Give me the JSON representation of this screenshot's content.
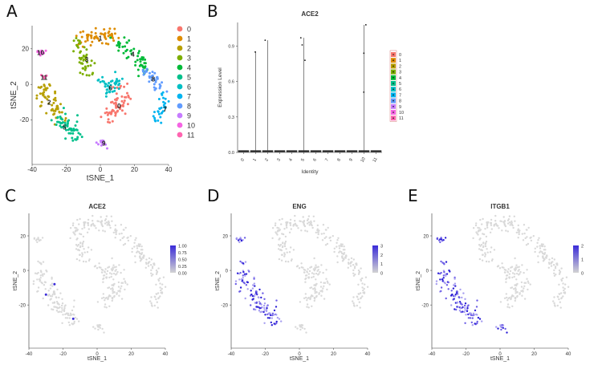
{
  "panels": {
    "A": {
      "letter": "A"
    },
    "B": {
      "letter": "B"
    },
    "C": {
      "letter": "C"
    },
    "D": {
      "letter": "D"
    },
    "E": {
      "letter": "E"
    }
  },
  "palette": [
    "#F8766D",
    "#DE8C00",
    "#B79F00",
    "#7CAE00",
    "#00BA38",
    "#00C08B",
    "#00BFC4",
    "#00B4F0",
    "#619CFF",
    "#C77CFF",
    "#F564E3",
    "#FF64B0"
  ],
  "chart_data": [
    {
      "panel": "A",
      "type": "scatter",
      "title": "",
      "xlabel": "tSNE_1",
      "ylabel": "tSNE_2",
      "xlim": [
        -40,
        40
      ],
      "ylim": [
        -45,
        33
      ],
      "xticks": [
        -40,
        -20,
        0,
        20,
        40
      ],
      "yticks": [
        -20,
        0,
        20
      ],
      "legend": {
        "placement": "right",
        "entries": [
          "0",
          "1",
          "2",
          "3",
          "4",
          "5",
          "6",
          "7",
          "8",
          "9",
          "10",
          "11"
        ]
      },
      "cluster_labels": [
        {
          "text": "0",
          "x": 11,
          "y": -12
        },
        {
          "text": "1",
          "x": 0,
          "y": 26
        },
        {
          "text": "2",
          "x": -30,
          "y": -10
        },
        {
          "text": "3",
          "x": -8,
          "y": 14
        },
        {
          "text": "4",
          "x": 19,
          "y": 17
        },
        {
          "text": "5",
          "x": -21,
          "y": -24
        },
        {
          "text": "6",
          "x": 6,
          "y": -2
        },
        {
          "text": "7",
          "x": 38,
          "y": -14
        },
        {
          "text": "8",
          "x": 31,
          "y": 3
        },
        {
          "text": "9",
          "x": 2,
          "y": -33
        },
        {
          "text": "10",
          "x": -35,
          "y": 18
        },
        {
          "text": "11",
          "x": -33,
          "y": 4
        }
      ]
    },
    {
      "panel": "B",
      "type": "violin",
      "title": "ACE2",
      "xlabel": "Identity",
      "ylabel": "Expression Level",
      "categories": [
        "0",
        "1",
        "2",
        "3",
        "4",
        "5",
        "6",
        "7",
        "8",
        "9",
        "10",
        "11"
      ],
      "ylim": [
        0,
        1.1
      ],
      "yticks": [
        "0.0",
        "0.3",
        "0.6",
        "0.9"
      ],
      "nonzero_points": [
        {
          "cluster": "1",
          "y": 0.85
        },
        {
          "cluster": "2",
          "y": 0.95
        },
        {
          "cluster": "5",
          "y": 0.97
        },
        {
          "cluster": "5",
          "y": 0.91
        },
        {
          "cluster": "5",
          "y": 0.78
        },
        {
          "cluster": "10",
          "y": 1.08
        },
        {
          "cluster": "10",
          "y": 0.84
        },
        {
          "cluster": "10",
          "y": 0.51
        }
      ],
      "legend": {
        "placement": "right",
        "entries": [
          "0",
          "1",
          "2",
          "3",
          "4",
          "5",
          "6",
          "7",
          "8",
          "9",
          "10",
          "11"
        ]
      }
    },
    {
      "panel": "C",
      "type": "scatter",
      "title": "ACE2",
      "xlabel": "tSNE_1",
      "ylabel": "tSNE_2",
      "xlim": [
        -40,
        40
      ],
      "ylim": [
        -45,
        33
      ],
      "xticks": [
        -40,
        -20,
        0,
        20,
        40
      ],
      "yticks": [
        -20,
        0,
        20
      ],
      "colorbar": {
        "ticks": [
          "1.00",
          "0.75",
          "0.50",
          "0.25",
          "0.00"
        ],
        "low": "#d3d3d3",
        "high": "#3a2bd8"
      },
      "highlighted": {
        "clusters": [],
        "points": [
          {
            "x": -25,
            "y": -8
          },
          {
            "x": -30,
            "y": -14
          },
          {
            "x": -14,
            "y": -28
          }
        ]
      }
    },
    {
      "panel": "D",
      "type": "scatter",
      "title": "ENG",
      "xlabel": "tSNE_1",
      "ylabel": "tSNE_2",
      "xlim": [
        -40,
        40
      ],
      "ylim": [
        -45,
        33
      ],
      "xticks": [
        -40,
        -20,
        0,
        20,
        40
      ],
      "yticks": [
        -20,
        0,
        20
      ],
      "colorbar": {
        "ticks": [
          "3",
          "2",
          "1",
          "0"
        ],
        "low": "#d3d3d3",
        "high": "#3a2bd8"
      },
      "highlighted": {
        "clusters": [
          "2",
          "5",
          "10",
          "11"
        ],
        "points": []
      }
    },
    {
      "panel": "E",
      "type": "scatter",
      "title": "ITGB1",
      "xlabel": "tSNE_1",
      "ylabel": "tSNE_2",
      "xlim": [
        -40,
        40
      ],
      "ylim": [
        -45,
        33
      ],
      "xticks": [
        -40,
        -20,
        0,
        20,
        40
      ],
      "yticks": [
        -20,
        0,
        20
      ],
      "colorbar": {
        "ticks": [
          "2",
          "1",
          "0"
        ],
        "low": "#d3d3d3",
        "high": "#3a2bd8"
      },
      "highlighted": {
        "clusters": [
          "2",
          "5",
          "9",
          "10",
          "11"
        ],
        "points": []
      }
    }
  ]
}
